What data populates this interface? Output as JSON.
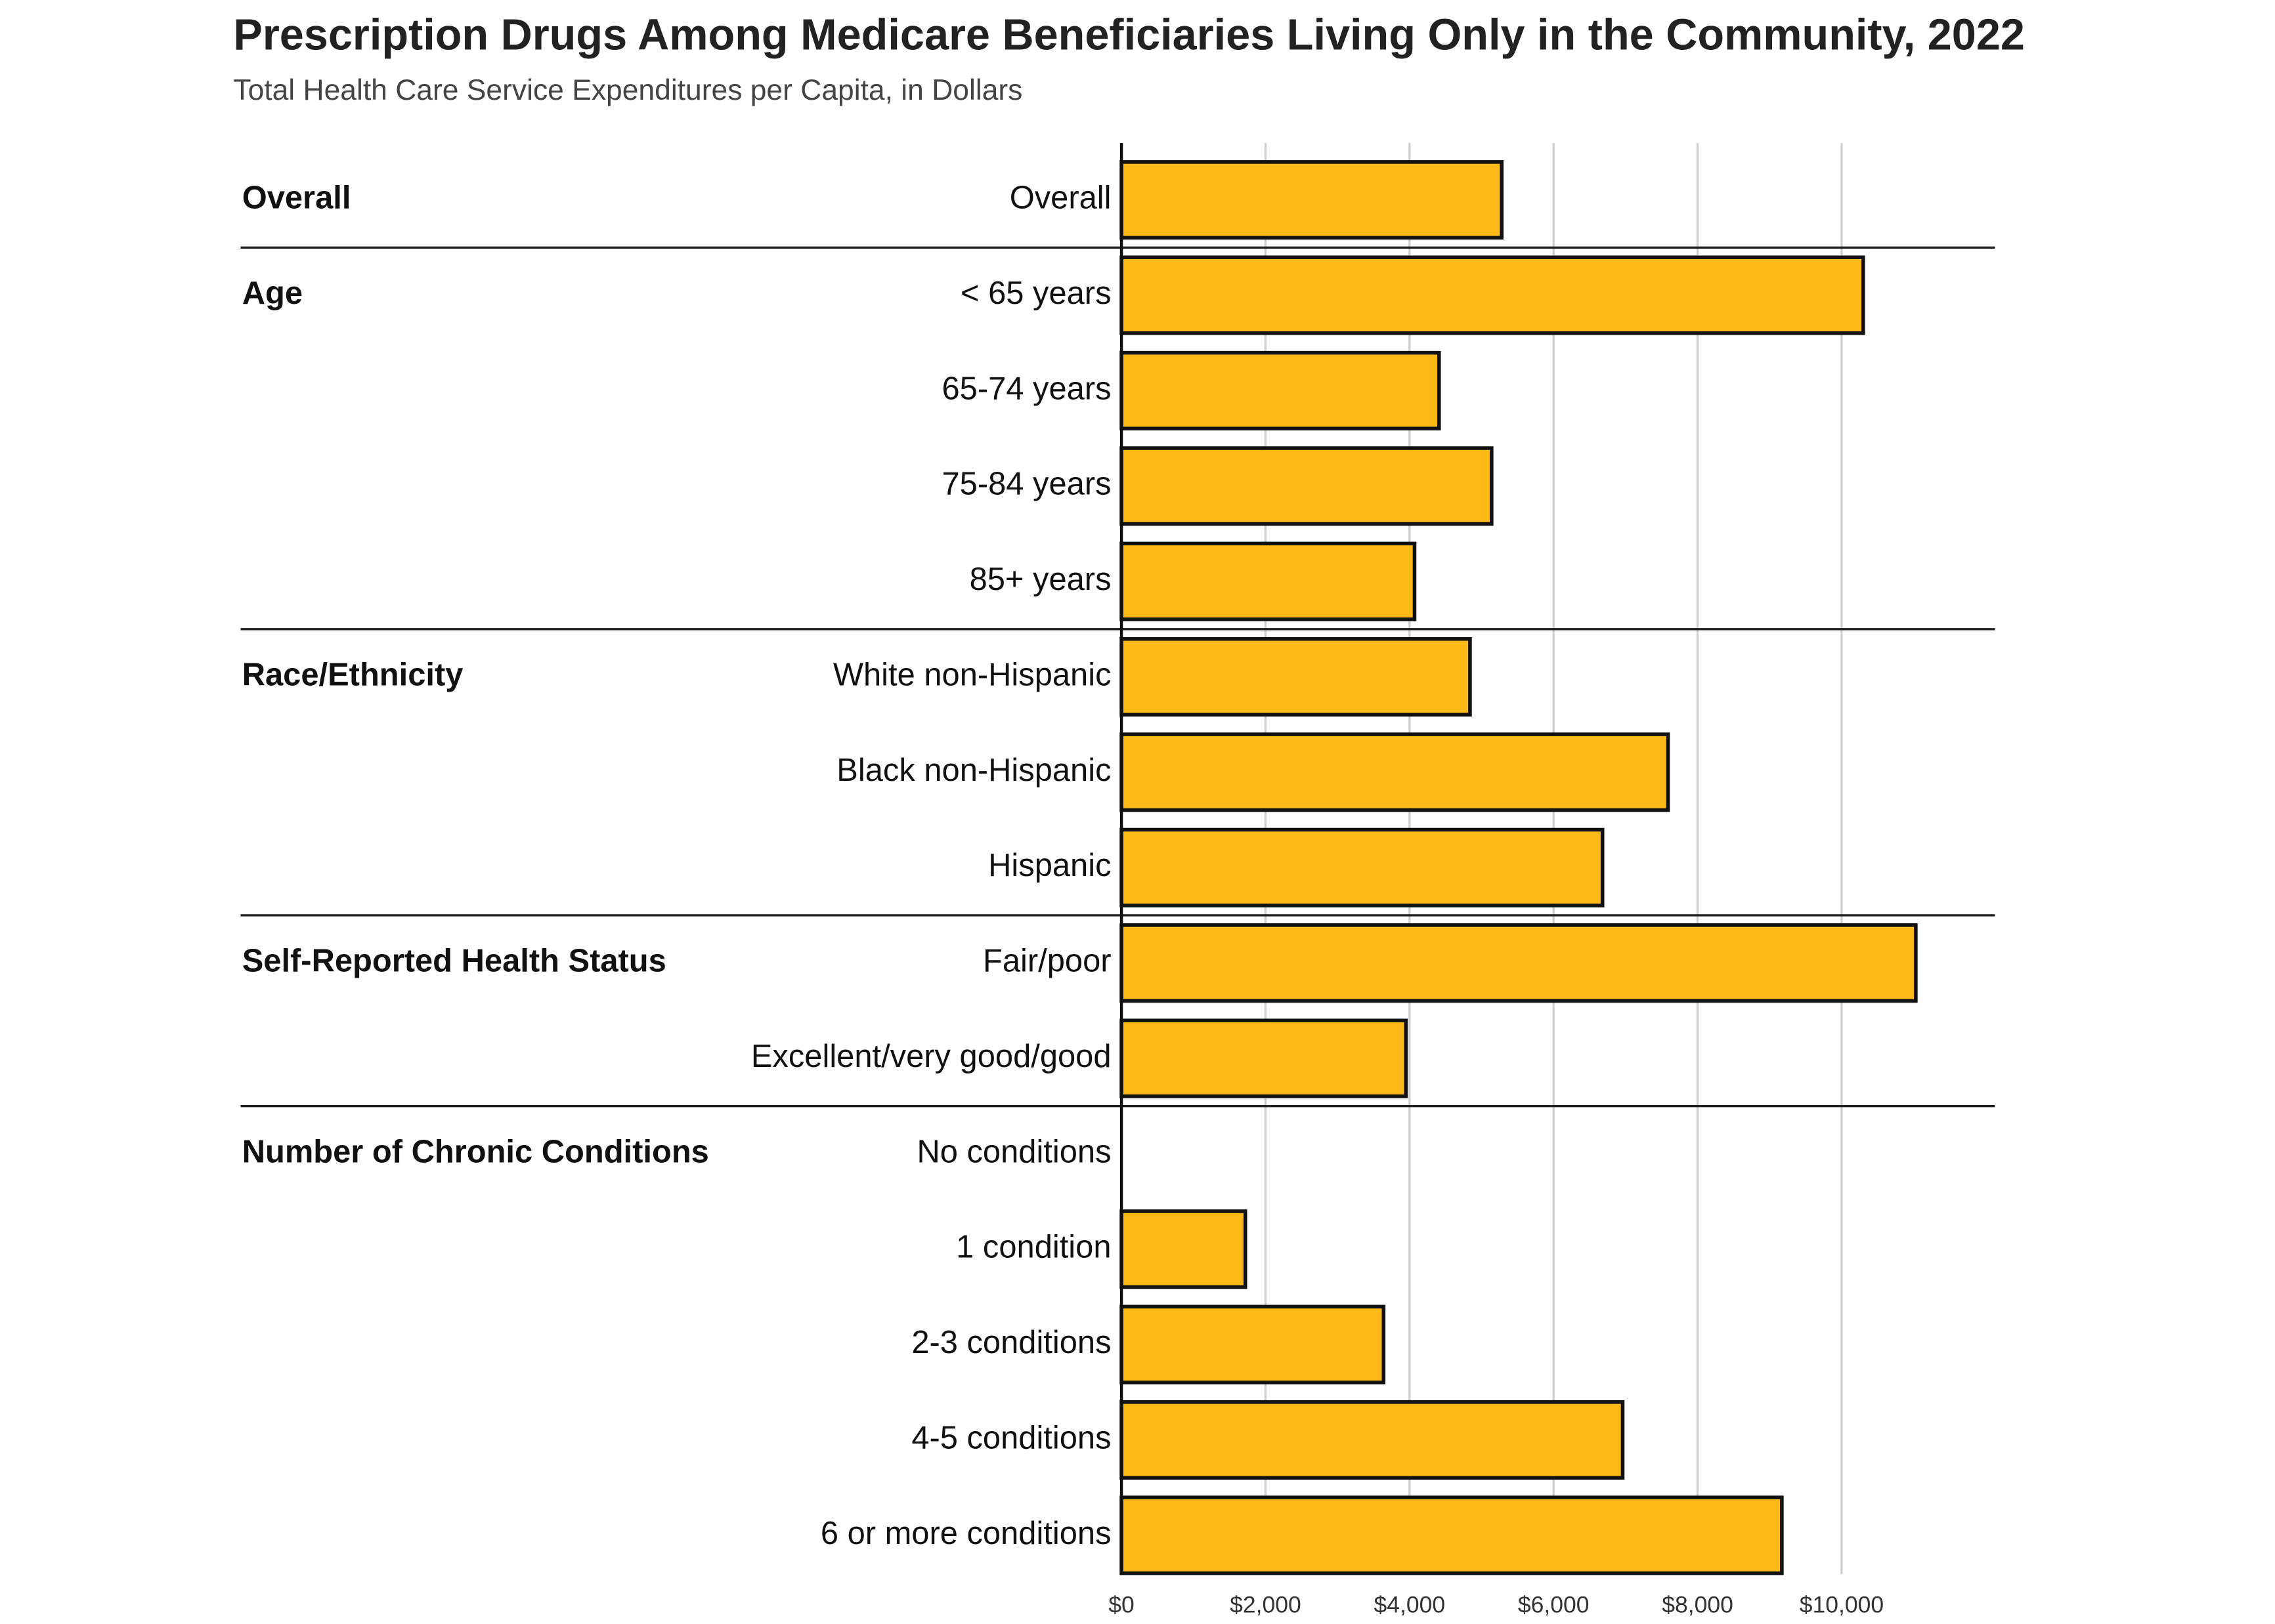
{
  "chart_data": {
    "type": "bar",
    "title": "Prescription Drugs Among Medicare Beneficiaries Living Only in the Community, 2022",
    "subtitle": "Total Health Care Service Expenditures per Capita, in Dollars",
    "color": "#fcb918",
    "xlim": [
      0,
      12130
    ],
    "xticks": [
      {
        "value": 0,
        "label": "$0"
      },
      {
        "value": 2000,
        "label": "$2,000"
      },
      {
        "value": 4000,
        "label": "$4,000"
      },
      {
        "value": 6000,
        "label": "$6,000"
      },
      {
        "value": 8000,
        "label": "$8,000"
      },
      {
        "value": 10000,
        "label": "$10,000"
      }
    ],
    "grid": true,
    "groups": [
      {
        "label": "Overall",
        "categories": [
          "Overall"
        ],
        "values": [
          5280
        ]
      },
      {
        "label": "Age",
        "categories": [
          "< 65 years",
          "65-74 years",
          "75-84 years",
          "85+ years"
        ],
        "values": [
          10300,
          4410,
          5140,
          4070
        ]
      },
      {
        "label": "Race/Ethnicity",
        "categories": [
          "White non-Hispanic",
          "Black non-Hispanic",
          "Hispanic"
        ],
        "values": [
          4840,
          7590,
          6680
        ]
      },
      {
        "label": "Self-Reported Health Status",
        "categories": [
          "Fair/poor",
          "Excellent/very good/good"
        ],
        "values": [
          11030,
          3950
        ]
      },
      {
        "label": "Number of Chronic Conditions",
        "categories": [
          "No conditions",
          "1 condition",
          "2-3 conditions",
          "4-5 conditions",
          "6 or more conditions"
        ],
        "values": [
          null,
          1720,
          3640,
          6960,
          9170
        ]
      }
    ]
  }
}
